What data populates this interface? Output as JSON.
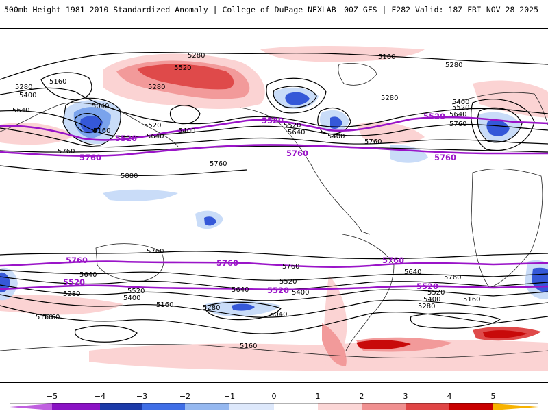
{
  "header": {
    "left_title": "500mb Height 1981–2010 Standardized Anomaly | College of DuPage NEXLAB",
    "right_title": "00Z GFS | F282 Valid: 18Z FRI NOV 28 2025"
  },
  "colorbar": {
    "labels": [
      "−5",
      "−4",
      "−3",
      "−2",
      "−1",
      "0",
      "1",
      "2",
      "3",
      "4",
      "5"
    ],
    "colors": [
      "#c060e0",
      "#8a12c4",
      "#1c3aa8",
      "#3f6ee6",
      "#95b8f0",
      "#dde8fb",
      "#ffffff",
      "#fbd6d6",
      "#f09090",
      "#e04545",
      "#c80000",
      "#f7b200"
    ]
  },
  "map": {
    "colors": {
      "contour": "#000000",
      "highlight_contour": "#9a14c8",
      "land_outline": "#222222",
      "neg_light": "#c9dcf8",
      "neg_mid": "#7aa3ec",
      "neg_strong": "#3558d8",
      "pos_light": "#fbd3d3",
      "pos_mid": "#f29a9a",
      "pos_strong": "#df4a4a",
      "pos_extreme": "#c80a0a"
    },
    "contour_labels": [
      {
        "text": "5280"
      },
      {
        "text": "5520"
      },
      {
        "text": "5280"
      },
      {
        "text": "5160"
      },
      {
        "text": "5280"
      },
      {
        "text": "5280"
      },
      {
        "text": "5160"
      },
      {
        "text": "5400"
      },
      {
        "text": "5640"
      },
      {
        "text": "5040"
      },
      {
        "text": "5160"
      },
      {
        "text": "5520"
      },
      {
        "text": "5400"
      },
      {
        "text": "5640"
      },
      {
        "text": "5760"
      },
      {
        "text": "5760"
      },
      {
        "text": "5880"
      },
      {
        "text": "5520"
      },
      {
        "text": "5640"
      },
      {
        "text": "5400"
      },
      {
        "text": "5280"
      },
      {
        "text": "5400"
      },
      {
        "text": "5520"
      },
      {
        "text": "5640"
      },
      {
        "text": "5760"
      },
      {
        "text": "5760"
      },
      {
        "text": "5760"
      },
      {
        "text": "5640"
      },
      {
        "text": "5520"
      },
      {
        "text": "5400"
      },
      {
        "text": "5280"
      },
      {
        "text": "5160"
      },
      {
        "text": "5520"
      },
      {
        "text": "5400"
      },
      {
        "text": "5640"
      },
      {
        "text": "5760"
      },
      {
        "text": "5160"
      },
      {
        "text": "5280"
      },
      {
        "text": "5040"
      },
      {
        "text": "5160"
      },
      {
        "text": "5760"
      },
      {
        "text": "5640"
      },
      {
        "text": "5520"
      },
      {
        "text": "5400"
      },
      {
        "text": "5280"
      },
      {
        "text": "5160"
      },
      {
        "text": "5160"
      }
    ],
    "highlight_labels": [
      {
        "text": "5520"
      },
      {
        "text": "5520"
      },
      {
        "text": "5520"
      },
      {
        "text": "5760"
      },
      {
        "text": "5760"
      },
      {
        "text": "5760"
      },
      {
        "text": "5760"
      },
      {
        "text": "5760"
      },
      {
        "text": "5760"
      },
      {
        "text": "5520"
      },
      {
        "text": "5520"
      },
      {
        "text": "5520"
      }
    ]
  }
}
